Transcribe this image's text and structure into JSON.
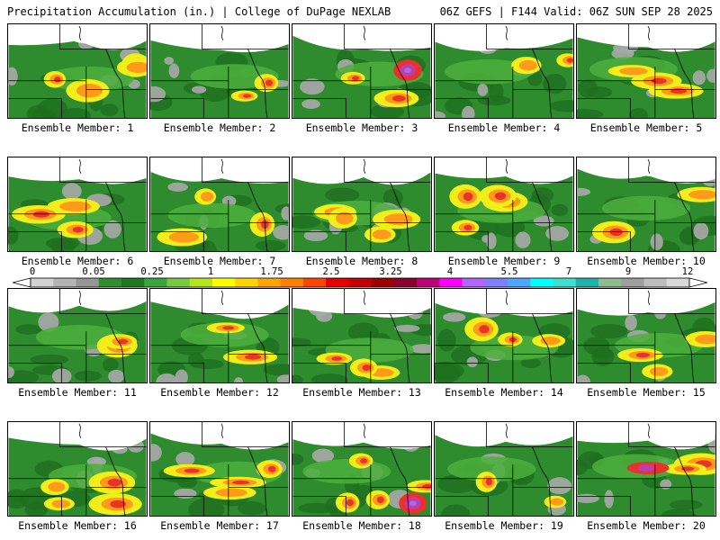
{
  "header": {
    "title": "Precipitation Accumulation (in.) | College of DuPage NEXLAB",
    "run_info": "06Z GEFS | F144 Valid: 06Z SUN SEP 28 2025"
  },
  "panels": [
    {
      "label": "Ensemble Member: 1"
    },
    {
      "label": "Ensemble Member: 2"
    },
    {
      "label": "Ensemble Member: 3"
    },
    {
      "label": "Ensemble Member: 4"
    },
    {
      "label": "Ensemble Member: 5"
    },
    {
      "label": "Ensemble Member: 6"
    },
    {
      "label": "Ensemble Member: 7"
    },
    {
      "label": "Ensemble Member: 8"
    },
    {
      "label": "Ensemble Member: 9"
    },
    {
      "label": "Ensemble Member: 10"
    },
    {
      "label": "Ensemble Member: 11"
    },
    {
      "label": "Ensemble Member: 12"
    },
    {
      "label": "Ensemble Member: 13"
    },
    {
      "label": "Ensemble Member: 14"
    },
    {
      "label": "Ensemble Member: 15"
    },
    {
      "label": "Ensemble Member: 16"
    },
    {
      "label": "Ensemble Member: 17"
    },
    {
      "label": "Ensemble Member: 18"
    },
    {
      "label": "Ensemble Member: 19"
    },
    {
      "label": "Ensemble Member: 20"
    }
  ],
  "colorbar": {
    "tick_labels": [
      "0",
      "0.05",
      "0.25",
      "1",
      "1.75",
      "2.5",
      "3.25",
      "4",
      "5.5",
      "7",
      "9",
      "12"
    ],
    "colors": [
      "#d3d3d3",
      "#b4b4b4",
      "#969696",
      "#2f8f2f",
      "#1f7a1f",
      "#3aa53a",
      "#7ac943",
      "#b5e61d",
      "#ffff00",
      "#ffd400",
      "#ffa500",
      "#ff7f00",
      "#ff4500",
      "#e60000",
      "#c80000",
      "#a00000",
      "#8b0030",
      "#c0007a",
      "#ff00ff",
      "#b266ff",
      "#7f7fff",
      "#4da6ff",
      "#00ffff",
      "#40e0d0",
      "#20b2aa",
      "#8fbc8f",
      "#9e9e9e",
      "#bdbdbd",
      "#d9d9d9"
    ]
  },
  "map_colors": {
    "background": "#2e8b2e",
    "dark_green": "#1e6e1e",
    "light_green": "#4caf3c",
    "yellow": "#f2ee1a",
    "orange": "#ff9a1a",
    "red": "#e8322a",
    "magenta": "#c03ab0",
    "violet": "#a070e0",
    "snow": "#ffffff",
    "gray": "#a8a8a8",
    "border": "#000000"
  }
}
